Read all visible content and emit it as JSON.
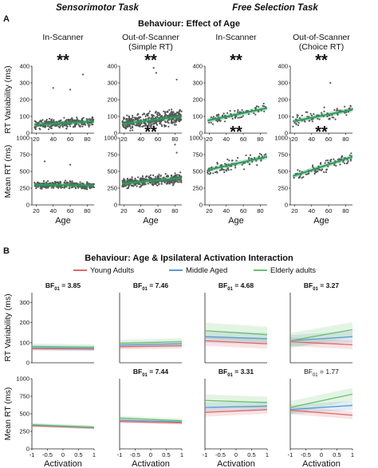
{
  "section_a": {
    "label": "A",
    "tasks": [
      "Sensorimotor Task",
      "Free Selection Task"
    ],
    "title": "Behaviour: Effect of Age",
    "col_titles": [
      [
        "In-Scanner"
      ],
      [
        "Out-of-Scanner",
        "(Simple RT)"
      ],
      [
        "In-Scanner"
      ],
      [
        "Out-of-Scanner",
        "(Choice RT)"
      ]
    ],
    "y_labels": [
      "RT Variability (ms)",
      "Mean RT (ms)"
    ],
    "x_label": "Age"
  },
  "section_b": {
    "label": "B",
    "title": "Behaviour: Age & Ipsilateral Activation Interaction",
    "y_labels": [
      "RT Variability (ms)",
      "Mean RT (ms)"
    ],
    "x_label": "Activation"
  },
  "colors": {
    "scatter": "#555555",
    "fit": "#2e9a5c",
    "young": "#e06666",
    "middle": "#5b9bd5",
    "elderly": "#6cc06c"
  },
  "chart_data": [
    {
      "type": "scatter",
      "panel": "A-row1",
      "x_label": "Age",
      "y_label": "RT Variability (ms)",
      "ylim": [
        0,
        400
      ],
      "yticks": [
        0,
        100,
        200,
        300,
        400
      ],
      "xlim": [
        15,
        88
      ],
      "xticks": [
        20,
        40,
        60,
        80
      ],
      "subplots": [
        {
          "title": "In-Scanner",
          "significance": "**",
          "n": 300,
          "age_range": [
            18,
            88
          ],
          "fit": [
            [
              18,
              50
            ],
            [
              88,
              70
            ]
          ],
          "sd": 22,
          "outliers": [
            [
              40,
              270
            ],
            [
              60,
              260
            ],
            [
              75,
              350
            ]
          ]
        },
        {
          "title": "Out-of-Scanner (Simple RT)",
          "significance": "**",
          "n": 420,
          "age_range": [
            18,
            88
          ],
          "fit": [
            [
              18,
              55
            ],
            [
              88,
              100
            ]
          ],
          "sd": 35,
          "outliers": [
            [
              55,
              390
            ],
            [
              58,
              360
            ],
            [
              82,
              320
            ]
          ]
        },
        {
          "title": "In-Scanner",
          "significance": "**",
          "n": 85,
          "age_range": [
            18,
            88
          ],
          "fit": [
            [
              18,
              75
            ],
            [
              88,
              150
            ]
          ],
          "sd": 25,
          "outliers": []
        },
        {
          "title": "Out-of-Scanner (Choice RT)",
          "significance": "**",
          "n": 85,
          "age_range": [
            18,
            88
          ],
          "fit": [
            [
              18,
              70
            ],
            [
              88,
              140
            ]
          ],
          "sd": 30,
          "outliers": [
            [
              62,
              300
            ]
          ]
        }
      ]
    },
    {
      "type": "scatter",
      "panel": "A-row2",
      "x_label": "Age",
      "y_label": "Mean RT (ms)",
      "ylim": [
        0,
        1000
      ],
      "yticks": [
        0,
        250,
        500,
        750,
        1000
      ],
      "xlim": [
        15,
        88
      ],
      "xticks": [
        20,
        40,
        60,
        80
      ],
      "subplots": [
        {
          "title": "In-Scanner",
          "significance": "",
          "n": 300,
          "age_range": [
            18,
            88
          ],
          "fit": [
            [
              18,
              300
            ],
            [
              88,
              290
            ]
          ],
          "sd": 45,
          "outliers": [
            [
              30,
              650
            ],
            [
              60,
              600
            ]
          ]
        },
        {
          "title": "Out-of-Scanner (Simple RT)",
          "significance": "**",
          "n": 420,
          "age_range": [
            18,
            88
          ],
          "fit": [
            [
              18,
              320
            ],
            [
              88,
              400
            ]
          ],
          "sd": 60,
          "outliers": [
            [
              80,
              900
            ],
            [
              82,
              780
            ]
          ]
        },
        {
          "title": "In-Scanner",
          "significance": "**",
          "n": 85,
          "age_range": [
            18,
            88
          ],
          "fit": [
            [
              18,
              520
            ],
            [
              88,
              720
            ]
          ],
          "sd": 70,
          "outliers": []
        },
        {
          "title": "Out-of-Scanner (Choice RT)",
          "significance": "**",
          "n": 85,
          "age_range": [
            18,
            88
          ],
          "fit": [
            [
              18,
              430
            ],
            [
              88,
              720
            ]
          ],
          "sd": 75,
          "outliers": []
        }
      ]
    },
    {
      "type": "line",
      "panel": "B-row1",
      "x_label": "Activation",
      "y_label": "RT Variability (ms)",
      "ylim": [
        0,
        350
      ],
      "yticks": [
        0,
        100,
        200,
        300
      ],
      "xlim": [
        -1,
        1
      ],
      "xticks": [
        -1,
        -0.5,
        0,
        0.5,
        1
      ],
      "legend": [
        "Young Adults",
        "Middle Aged",
        "Elderly adults"
      ],
      "legend_position": "top",
      "subplots": [
        {
          "bf_prefix": "BF",
          "bf_sub": "01",
          "bf_value": " = 3.85",
          "bf_bold": true,
          "series": [
            {
              "name": "Young Adults",
              "y": [
                70,
                68
              ],
              "band": 10
            },
            {
              "name": "Middle Aged",
              "y": [
                75,
                72
              ],
              "band": 12
            },
            {
              "name": "Elderly adults",
              "y": [
                82,
                78
              ],
              "band": 14
            }
          ]
        },
        {
          "bf_prefix": "BF",
          "bf_sub": "01",
          "bf_value": " = 7.46",
          "bf_bold": true,
          "series": [
            {
              "name": "Young Adults",
              "y": [
                80,
                85
              ],
              "band": 14
            },
            {
              "name": "Middle Aged",
              "y": [
                88,
                95
              ],
              "band": 16
            },
            {
              "name": "Elderly adults",
              "y": [
                97,
                105
              ],
              "band": 18
            }
          ]
        },
        {
          "bf_prefix": "BF",
          "bf_sub": "01",
          "bf_value": " = 4.68",
          "bf_bold": true,
          "series": [
            {
              "name": "Young Adults",
              "y": [
                110,
                95
              ],
              "band": 25
            },
            {
              "name": "Middle Aged",
              "y": [
                130,
                120
              ],
              "band": 30
            },
            {
              "name": "Elderly adults",
              "y": [
                160,
                140
              ],
              "band": 40
            }
          ]
        },
        {
          "bf_prefix": "BF",
          "bf_sub": "01",
          "bf_value": " = 3.27",
          "bf_bold": true,
          "series": [
            {
              "name": "Young Adults",
              "y": [
                105,
                90
              ],
              "band": 22
            },
            {
              "name": "Middle Aged",
              "y": [
                110,
                130
              ],
              "band": 28
            },
            {
              "name": "Elderly adults",
              "y": [
                110,
                165
              ],
              "band": 38
            }
          ]
        }
      ]
    },
    {
      "type": "line",
      "panel": "B-row2",
      "x_label": "Activation",
      "y_label": "Mean RT (ms)",
      "ylim": [
        0,
        1000
      ],
      "yticks": [
        0,
        250,
        500,
        750,
        1000
      ],
      "xlim": [
        -1,
        1
      ],
      "xticks": [
        -1,
        -0.5,
        0,
        0.5,
        1
      ],
      "subplots": [
        {
          "bf_prefix": "",
          "bf_sub": "",
          "bf_value": "",
          "bf_bold": false,
          "series": [
            {
              "name": "Young Adults",
              "y": [
                330,
                300
              ],
              "band": 20
            },
            {
              "name": "Middle Aged",
              "y": [
                340,
                305
              ],
              "band": 22
            },
            {
              "name": "Elderly adults",
              "y": [
                345,
                310
              ],
              "band": 24
            }
          ]
        },
        {
          "bf_prefix": "BF",
          "bf_sub": "01",
          "bf_value": " = 7.44",
          "bf_bold": true,
          "series": [
            {
              "name": "Young Adults",
              "y": [
                390,
                370
              ],
              "band": 25
            },
            {
              "name": "Middle Aged",
              "y": [
                410,
                385
              ],
              "band": 28
            },
            {
              "name": "Elderly adults",
              "y": [
                440,
                400
              ],
              "band": 32
            }
          ]
        },
        {
          "bf_prefix": "BF",
          "bf_sub": "01",
          "bf_value": " = 3.31",
          "bf_bold": true,
          "series": [
            {
              "name": "Young Adults",
              "y": [
                520,
                560
              ],
              "band": 60
            },
            {
              "name": "Middle Aged",
              "y": [
                590,
                610
              ],
              "band": 70
            },
            {
              "name": "Elderly adults",
              "y": [
                690,
                660
              ],
              "band": 85
            }
          ]
        },
        {
          "bf_prefix": "BF",
          "bf_sub": "01",
          "bf_value": " = 1.77",
          "bf_bold": false,
          "series": [
            {
              "name": "Young Adults",
              "y": [
                550,
                480
              ],
              "band": 55
            },
            {
              "name": "Middle Aged",
              "y": [
                560,
                620
              ],
              "band": 65
            },
            {
              "name": "Elderly adults",
              "y": [
                590,
                780
              ],
              "band": 90
            }
          ]
        }
      ]
    }
  ]
}
